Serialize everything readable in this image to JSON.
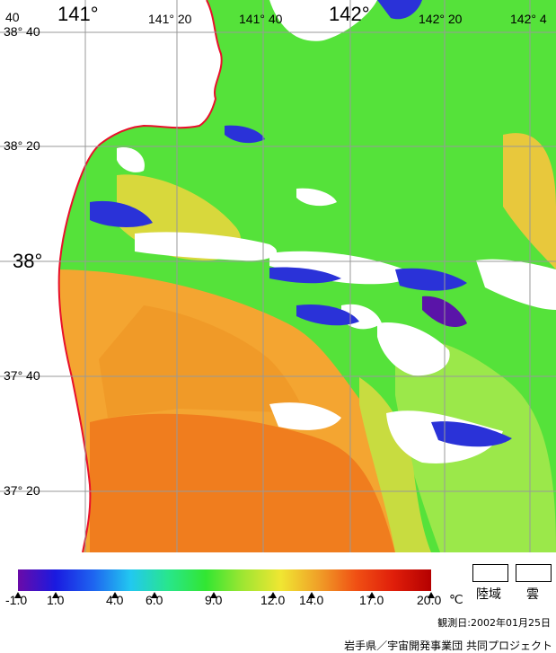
{
  "map": {
    "lon_labels": [
      "141°",
      "141° 20",
      "141° 40",
      "142°",
      "142° 20",
      "142° 4"
    ],
    "lat_labels": [
      "38° 40",
      "38° 20",
      "38°",
      "37° 40",
      "37° 20"
    ],
    "corner_label": "40",
    "colors": {
      "sea_warm": "#f07d1e",
      "sea_orange": "#f4a531",
      "sea_yellow": "#e8d43c",
      "sea_green": "#55e23a",
      "sea_lightgreen": "#9be84a",
      "cloud_white": "#ffffff",
      "land_white": "#ffffff",
      "coast_red": "#e8102a",
      "cold_blue": "#2a32d8",
      "cold_purple": "#5a14a8",
      "grid": "#999999"
    }
  },
  "legend": {
    "colorbar": {
      "stops": [
        "#6a0aa8",
        "#1a1ae0",
        "#1e64f0",
        "#22c8f0",
        "#28e68c",
        "#32e632",
        "#a0e632",
        "#f0e632",
        "#f0a028",
        "#f05014",
        "#e01e0a",
        "#b40000"
      ],
      "ticks": [
        "-1.0",
        "1.0",
        "4.0",
        "6.0",
        "9.0",
        "12.0",
        "14.0",
        "17.0",
        "20.0"
      ],
      "unit": "℃"
    },
    "land_label": "陸域",
    "cloud_label": "雲"
  },
  "observation_date": "観測日:2002年01月25日",
  "credit": "岩手県／宇宙開発事業団 共同プロジェクト"
}
